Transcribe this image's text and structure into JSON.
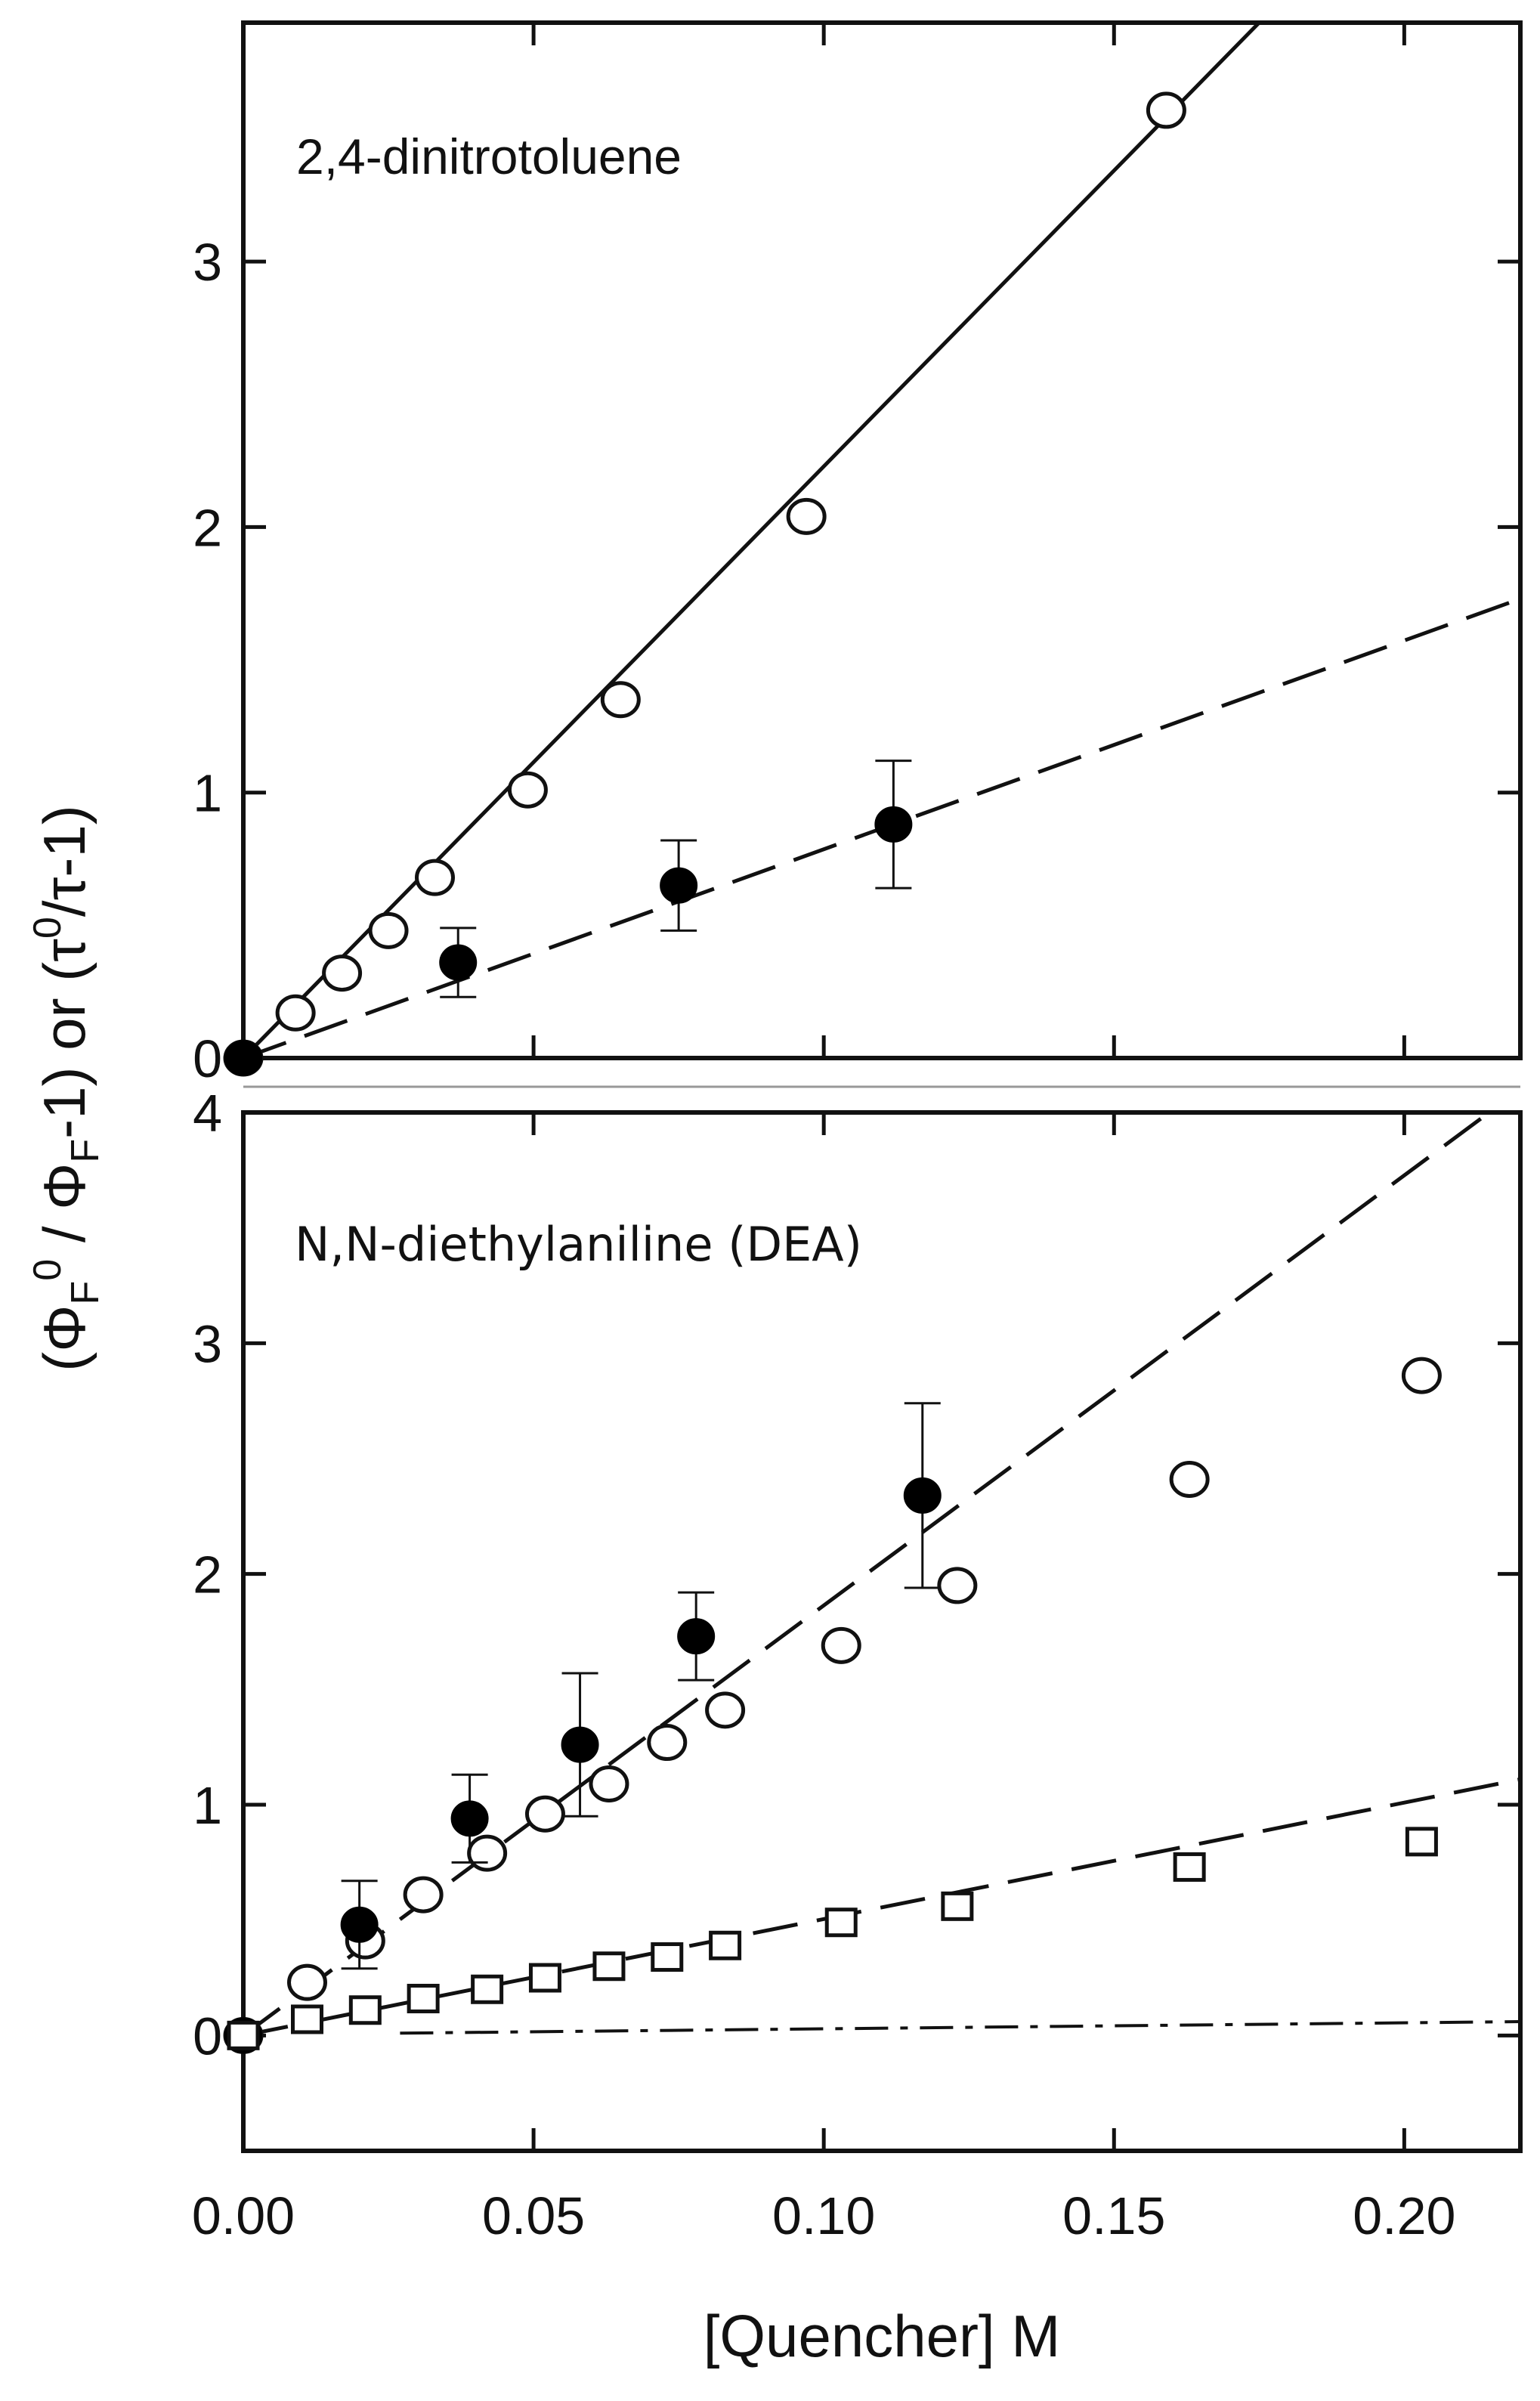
{
  "chart_data": [
    {
      "type": "scatter",
      "panel": "top",
      "annotation": "2,4-dinitrotoluene",
      "xlim": [
        0,
        0.22
      ],
      "ylim": [
        0,
        3.9
      ],
      "y_ticks": [
        0,
        1,
        2,
        3
      ],
      "y_tick_labels": [
        "0",
        "1",
        "2",
        "3"
      ],
      "series": [
        {
          "name": "open-circles",
          "marker": "open-circle",
          "x": [
            0.0,
            0.009,
            0.017,
            0.025,
            0.033,
            0.049,
            0.065,
            0.097,
            0.159
          ],
          "y": [
            0.0,
            0.17,
            0.32,
            0.48,
            0.68,
            1.01,
            1.35,
            2.04,
            3.57
          ]
        },
        {
          "name": "filled-circles",
          "marker": "filled-circle",
          "x": [
            0.0,
            0.037,
            0.075,
            0.112
          ],
          "y": [
            0.0,
            0.36,
            0.65,
            0.88
          ],
          "yerr": [
            0.0,
            0.13,
            0.17,
            0.24
          ]
        }
      ],
      "lines": [
        {
          "style": "solid",
          "x": [
            0,
            0.175
          ],
          "y": [
            0,
            3.9
          ]
        },
        {
          "style": "dashed",
          "x": [
            0,
            0.22
          ],
          "y": [
            0,
            1.73
          ]
        }
      ]
    },
    {
      "type": "scatter",
      "panel": "bottom",
      "annotation": "N,N-diethylaniline (DEA)",
      "xlim": [
        0,
        0.22
      ],
      "ylim": [
        -0.5,
        4
      ],
      "y_ticks": [
        0,
        1,
        2,
        3,
        4
      ],
      "y_tick_labels": [
        "0",
        "1",
        "2",
        "3",
        "4"
      ],
      "x_ticks": [
        0,
        0.05,
        0.1,
        0.15,
        0.2
      ],
      "x_tick_labels": [
        "0.00",
        "0.05",
        "0.10",
        "0.15",
        "0.20"
      ],
      "series": [
        {
          "name": "open-circles",
          "marker": "open-circle",
          "x": [
            0.0,
            0.011,
            0.021,
            0.031,
            0.042,
            0.052,
            0.063,
            0.073,
            0.083,
            0.103,
            0.123,
            0.163,
            0.203
          ],
          "y": [
            0.0,
            0.23,
            0.41,
            0.61,
            0.79,
            0.96,
            1.09,
            1.27,
            1.41,
            1.69,
            1.95,
            2.41,
            2.86
          ]
        },
        {
          "name": "filled-circles",
          "marker": "filled-circle",
          "x": [
            0.0,
            0.02,
            0.039,
            0.058,
            0.078,
            0.117
          ],
          "y": [
            0.0,
            0.48,
            0.94,
            1.26,
            1.73,
            2.34
          ],
          "yerr": [
            0.0,
            0.19,
            0.19,
            0.31,
            0.19,
            0.4
          ]
        },
        {
          "name": "open-squares",
          "marker": "open-square",
          "x": [
            0.0,
            0.011,
            0.021,
            0.031,
            0.042,
            0.052,
            0.063,
            0.073,
            0.083,
            0.103,
            0.123,
            0.163,
            0.203
          ],
          "y": [
            0.0,
            0.07,
            0.11,
            0.16,
            0.2,
            0.25,
            0.3,
            0.34,
            0.39,
            0.49,
            0.56,
            0.73,
            0.84
          ]
        }
      ],
      "lines": [
        {
          "style": "dashed",
          "x": [
            0,
            0.22
          ],
          "y": [
            0,
            4.1
          ]
        },
        {
          "style": "dashed",
          "x": [
            0,
            0.22
          ],
          "y": [
            0,
            1.11
          ]
        },
        {
          "style": "dashdot",
          "x": [
            0.027,
            0.22
          ],
          "y": [
            0.01,
            0.06
          ]
        }
      ]
    }
  ],
  "labels": {
    "xlabel": "[Quencher] M",
    "ylabel_parts": {
      "open_paren": "(",
      "phi": "Φ",
      "sub_f": "F",
      "sup_zero": "0",
      "slash": " / ",
      "minus_one": "-1)",
      "or": " or (",
      "tau": "τ",
      "slash_tau": "/τ-1)"
    }
  }
}
